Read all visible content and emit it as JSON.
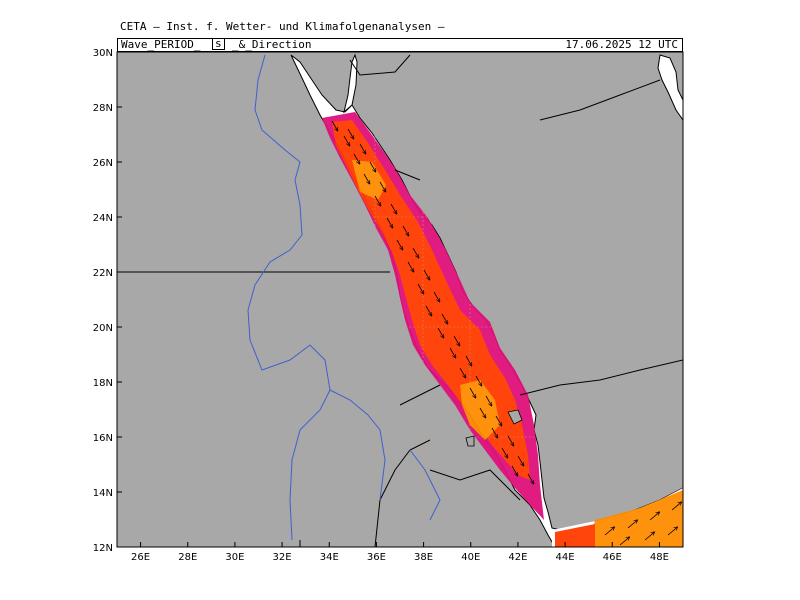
{
  "header": {
    "institute": "CETA — Inst. f. Wetter- und Klimafolgenanalysen —",
    "title_parts": [
      "Wave_PERIOD_",
      "s",
      "_&_Direction"
    ],
    "valid_time": "17.06.2025 12 UTC"
  },
  "map": {
    "lon_range": [
      25,
      49
    ],
    "lat_range": [
      12,
      30
    ],
    "colors": {
      "land": "#a8a8a8",
      "sea": "#ffffff",
      "coast": "#000000",
      "rivers": "#4060d0",
      "period_low": "#e0107a",
      "period_mid": "#ff3c00",
      "period_high": "#ff8c00"
    },
    "x_ticks": [
      "26E",
      "28E",
      "30E",
      "32E",
      "34E",
      "36E",
      "38E",
      "40E",
      "42E",
      "44E",
      "46E",
      "48E"
    ],
    "y_ticks": [
      "30N",
      "28N",
      "26N",
      "24N",
      "22N",
      "20N",
      "18N",
      "16N",
      "14N",
      "12N"
    ],
    "wave_direction": [
      {
        "region": "red-sea",
        "lon": [
          34.5,
          43
        ],
        "lat": [
          13,
          28.5
        ],
        "toward_deg": 150
      },
      {
        "region": "gulf-of-aden",
        "lon": [
          44,
          49
        ],
        "lat": [
          12,
          14
        ],
        "toward_deg": 50
      }
    ]
  }
}
